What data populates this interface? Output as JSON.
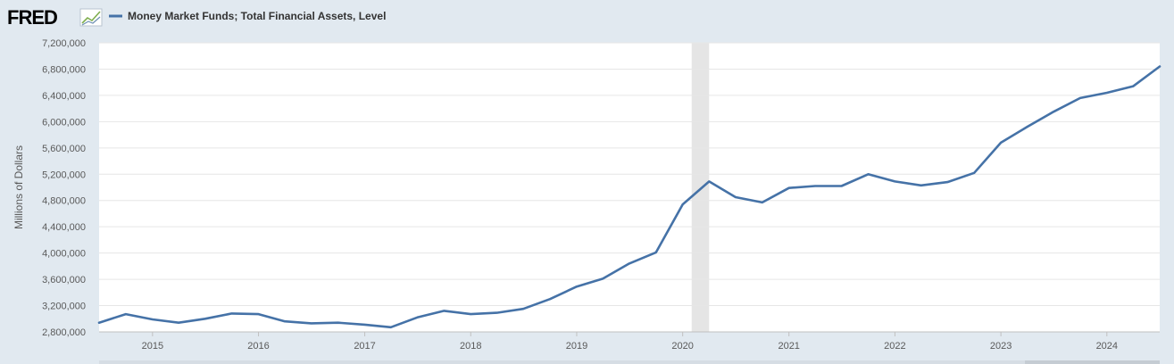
{
  "header": {
    "logo_text": "FRED",
    "legend_label": "Money Market Funds; Total Financial Assets, Level"
  },
  "colors": {
    "background": "#e1e9f0",
    "plot_bg": "#ffffff",
    "grid": "#e6e6e6",
    "line": "#4572a7",
    "recession": "#e5e5e5"
  },
  "chart_data": {
    "type": "line",
    "title": "",
    "ylabel": "Millions of Dollars",
    "xlabel": "",
    "ylim": [
      2800000,
      7200000
    ],
    "yticks": [
      2800000,
      3200000,
      3600000,
      4000000,
      4400000,
      4800000,
      5200000,
      5600000,
      6000000,
      6400000,
      6800000,
      7200000
    ],
    "ytick_labels": [
      "2,800,000",
      "3,200,000",
      "3,600,000",
      "4,000,000",
      "4,400,000",
      "4,800,000",
      "5,200,000",
      "5,600,000",
      "6,000,000",
      "6,400,000",
      "6,800,000",
      "7,200,000"
    ],
    "xlim": [
      "2014-07-01",
      "2024-07-01"
    ],
    "xticks": [
      "2015-01-01",
      "2016-01-01",
      "2017-01-01",
      "2018-01-01",
      "2019-01-01",
      "2020-01-01",
      "2021-01-01",
      "2022-01-01",
      "2023-01-01",
      "2024-01-01"
    ],
    "xtick_labels": [
      "2015",
      "2016",
      "2017",
      "2018",
      "2019",
      "2020",
      "2021",
      "2022",
      "2023",
      "2024"
    ],
    "grid": true,
    "legend": "top-left",
    "recessions": [
      {
        "start": "2020-02-01",
        "end": "2020-04-01"
      }
    ],
    "series": [
      {
        "name": "Money Market Funds; Total Financial Assets, Level",
        "x": [
          "2014-07-01",
          "2014-10-01",
          "2015-01-01",
          "2015-04-01",
          "2015-07-01",
          "2015-10-01",
          "2016-01-01",
          "2016-04-01",
          "2016-07-01",
          "2016-10-01",
          "2017-01-01",
          "2017-04-01",
          "2017-07-01",
          "2017-10-01",
          "2018-01-01",
          "2018-04-01",
          "2018-07-01",
          "2018-10-01",
          "2019-01-01",
          "2019-04-01",
          "2019-07-01",
          "2019-10-01",
          "2020-01-01",
          "2020-04-01",
          "2020-07-01",
          "2020-10-01",
          "2021-01-01",
          "2021-04-01",
          "2021-07-01",
          "2021-10-01",
          "2022-01-01",
          "2022-04-01",
          "2022-07-01",
          "2022-10-01",
          "2023-01-01",
          "2023-04-01",
          "2023-07-01",
          "2023-10-01",
          "2024-01-01",
          "2024-04-01",
          "2024-07-01"
        ],
        "values": [
          2940000,
          3070000,
          2990000,
          2940000,
          3000000,
          3080000,
          3070000,
          2960000,
          2930000,
          2940000,
          2910000,
          2870000,
          3020000,
          3120000,
          3070000,
          3090000,
          3150000,
          3300000,
          3490000,
          3610000,
          3840000,
          4010000,
          4740000,
          5090000,
          4850000,
          4770000,
          4990000,
          5020000,
          5020000,
          5200000,
          5090000,
          5030000,
          5080000,
          5220000,
          5680000,
          5920000,
          6150000,
          6360000,
          6440000,
          6540000,
          6840000
        ]
      }
    ]
  }
}
